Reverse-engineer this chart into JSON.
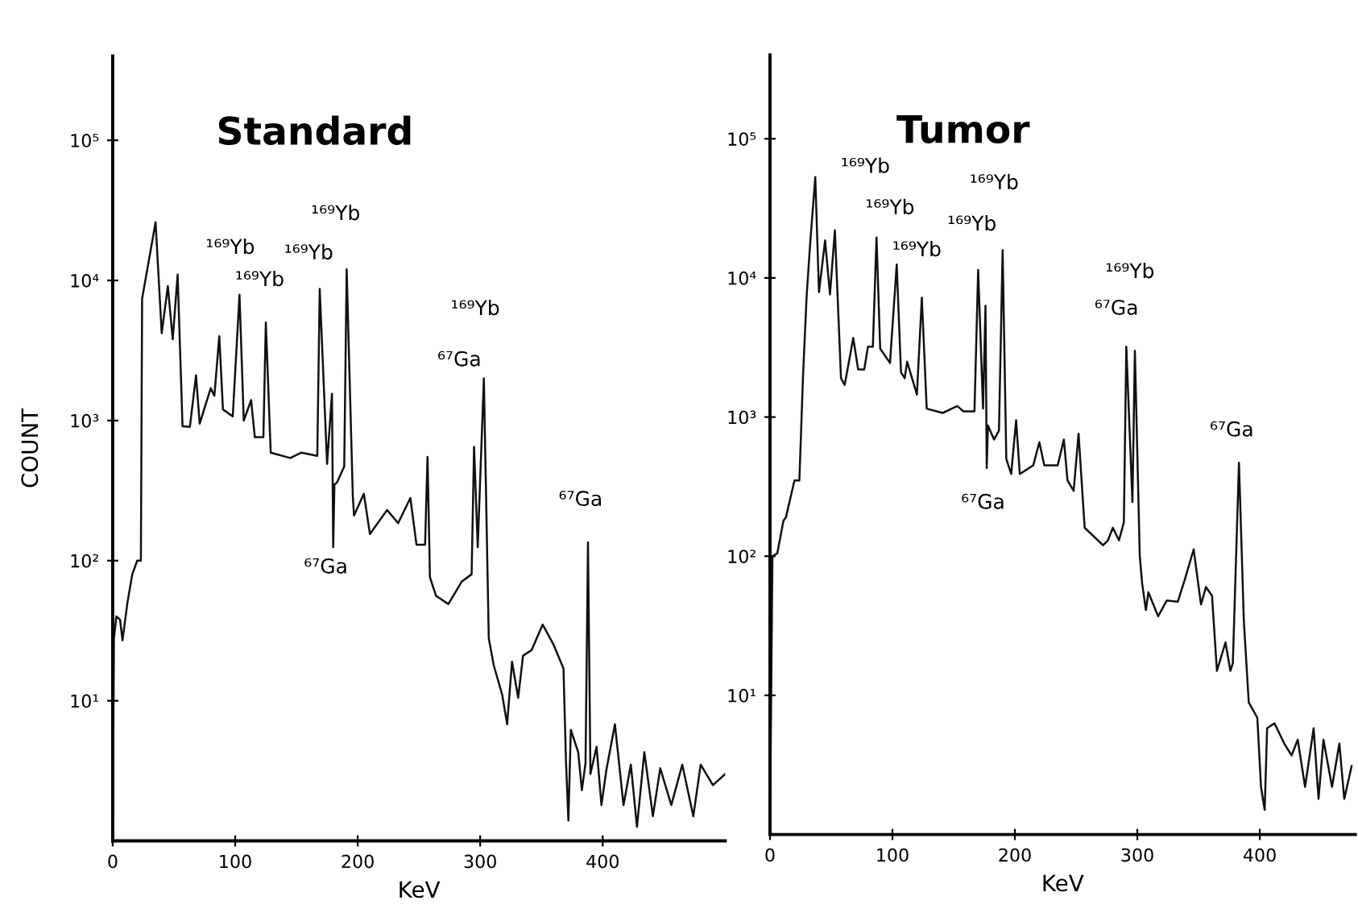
{
  "chart_data": [
    {
      "type": "line",
      "title": "Standard",
      "xlabel": "KeV",
      "ylabel": "COUNT",
      "log": "y",
      "xlim": [
        0,
        500
      ],
      "ylim": [
        1,
        400000
      ],
      "xticks": [
        0,
        100,
        200,
        300,
        400
      ],
      "yticks": [
        {
          "value": 10,
          "label": "10¹"
        },
        {
          "value": 100,
          "label": "10²"
        },
        {
          "value": 1000,
          "label": "10³"
        },
        {
          "value": 10000,
          "label": "10⁴"
        },
        {
          "value": 100000,
          "label": "10⁵"
        }
      ],
      "x": [
        0,
        1,
        3,
        6,
        8,
        12,
        16,
        20,
        23,
        24,
        35,
        40,
        45,
        49,
        53,
        57,
        63,
        68,
        71,
        80,
        83,
        87,
        90,
        98,
        103.5,
        107,
        113,
        116,
        123,
        125,
        129,
        145,
        154,
        167,
        169,
        175,
        179,
        180,
        181,
        183,
        189,
        191,
        196,
        197,
        205,
        210,
        224,
        233,
        243,
        248,
        255,
        257,
        259,
        264,
        274,
        285,
        293,
        295,
        298,
        303,
        307,
        311,
        318,
        322,
        326,
        331,
        335,
        342,
        351,
        360,
        368,
        370,
        372,
        374,
        380,
        383,
        386,
        388,
        390,
        395,
        399,
        403,
        410,
        417,
        423,
        428,
        434,
        441,
        447,
        456,
        465,
        474,
        480,
        490,
        500
      ],
      "series": [
        {
          "color": "#111111",
          "values": [
            1,
            28,
            40,
            38,
            27,
            50,
            80,
            100,
            100,
            7400,
            26000,
            4200,
            9100,
            3800,
            11000,
            910,
            900,
            2100,
            950,
            1700,
            1500,
            4000,
            1200,
            1070,
            7900,
            1000,
            1400,
            760,
            760,
            5000,
            590,
            540,
            590,
            560,
            8700,
            490,
            1550,
            125,
            350,
            360,
            470,
            12000,
            290,
            210,
            300,
            155,
            230,
            185,
            280,
            130,
            130,
            550,
            76,
            56,
            49,
            71,
            80,
            650,
            125,
            2000,
            28,
            18,
            11,
            6.8,
            19,
            10.5,
            21,
            23,
            35,
            25,
            17,
            3.8,
            1.4,
            6.2,
            4.3,
            2.3,
            3.6,
            135,
            3.0,
            4.7,
            1.8,
            3.2,
            6.8,
            1.8,
            3.5,
            1.26,
            4.3,
            1.5,
            3.3,
            1.8,
            3.5,
            1.5,
            3.5,
            2.5,
            3.0
          ]
        }
      ],
      "annotations": [
        "¹⁶⁹Yb",
        "¹⁶⁹Yb",
        "¹⁶⁹Yb",
        "¹⁶⁹Yb",
        "¹⁶⁹Yb",
        "⁶⁷Ga",
        "⁶⁷Ga",
        "⁶⁷Ga"
      ]
    },
    {
      "type": "line",
      "title": "Tumor",
      "xlabel": "KeV",
      "log": "y",
      "xlim": [
        0,
        478
      ],
      "ylim": [
        1,
        400000
      ],
      "xticks": [
        0,
        100,
        200,
        300,
        400
      ],
      "yticks": [
        {
          "value": 10,
          "label": "10¹"
        },
        {
          "value": 100,
          "label": "10²"
        },
        {
          "value": 1000,
          "label": "10³"
        },
        {
          "value": 10000,
          "label": "10⁴"
        },
        {
          "value": 100000,
          "label": "10⁵"
        }
      ],
      "x": [
        0,
        0.5,
        2,
        6,
        11,
        13,
        20,
        24,
        27,
        30,
        33,
        37,
        40,
        45,
        49,
        53,
        58,
        61,
        68,
        72,
        77,
        80,
        84,
        87,
        90,
        98,
        103.5,
        107,
        110,
        112,
        120,
        124,
        128,
        141,
        153,
        158,
        167,
        170,
        174,
        176,
        177,
        178,
        183,
        187,
        190,
        193,
        197,
        201,
        204,
        215,
        220,
        224,
        235,
        240,
        243,
        248,
        252,
        257,
        272,
        276,
        280,
        285,
        289,
        291,
        296,
        298,
        302,
        304,
        307,
        309,
        317,
        324,
        333,
        339,
        346,
        352,
        356,
        361,
        365,
        372,
        376,
        378,
        383,
        387,
        391,
        398,
        401,
        404,
        406,
        412,
        420,
        426,
        431,
        437,
        444,
        448,
        452,
        459,
        465,
        469,
        475
      ],
      "series": [
        {
          "color": "#111111",
          "values": [
            1,
            3.5,
            100,
            105,
            180,
            190,
            350,
            350,
            2000,
            7600,
            18600,
            53000,
            7900,
            18600,
            7600,
            22000,
            1900,
            1700,
            3700,
            2200,
            2200,
            3200,
            3200,
            19500,
            3100,
            2450,
            12500,
            2100,
            1900,
            2500,
            1450,
            7200,
            1150,
            1070,
            1200,
            1100,
            1100,
            11400,
            1150,
            6300,
            430,
            870,
            690,
            800,
            15800,
            500,
            390,
            950,
            390,
            450,
            660,
            450,
            450,
            690,
            350,
            295,
            760,
            160,
            120,
            130,
            160,
            130,
            175,
            3200,
            245,
            3000,
            100,
            63,
            41,
            55,
            37,
            48,
            47,
            69,
            112,
            45,
            60,
            52,
            15,
            24,
            15,
            17,
            470,
            34,
            8.9,
            6.9,
            2.2,
            1.5,
            5.8,
            6.3,
            4.5,
            3.7,
            4.8,
            2.2,
            5.8,
            1.8,
            4.8,
            2.2,
            4.5,
            1.8,
            3.1
          ]
        }
      ],
      "annotations": [
        "¹⁶⁹Yb",
        "¹⁶⁹Yb",
        "¹⁶⁹Yb",
        "¹⁶⁹Yb",
        "¹⁶⁹Yb",
        "¹⁶⁹Yb",
        "⁶⁷Ga",
        "⁶⁷Ga",
        "⁶⁷Ga"
      ]
    }
  ]
}
